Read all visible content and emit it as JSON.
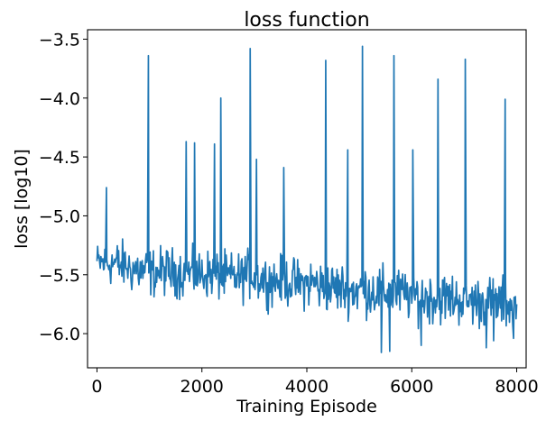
{
  "chart_data": {
    "type": "line",
    "title": "loss function",
    "xlabel": "Training Episode",
    "ylabel": "loss [log10]",
    "xlim": [
      -180,
      8180
    ],
    "ylim": [
      -6.29,
      -3.42
    ],
    "xticks": [
      0,
      2000,
      4000,
      6000,
      8000
    ],
    "xtick_labels": [
      "0",
      "2000",
      "4000",
      "6000",
      "8000"
    ],
    "yticks": [
      -6.0,
      -5.5,
      -5.0,
      -4.5,
      -4.0,
      -3.5
    ],
    "ytick_labels": [
      "−6.0",
      "−5.5",
      "−5.0",
      "−4.5",
      "−4.0",
      "−3.5"
    ],
    "grid": false,
    "legend": "none",
    "series": [
      {
        "color": "#1f77b4",
        "x_start": 0,
        "x_end": 8000,
        "points_per_segment": 16,
        "segment_width": 200,
        "band_means": [
          -5.4,
          -5.4,
          -5.42,
          -5.45,
          -5.47,
          -5.48,
          -5.47,
          -5.48,
          -5.49,
          -5.5,
          -5.49,
          -5.51,
          -5.52,
          -5.52,
          -5.5,
          -5.53,
          -5.55,
          -5.55,
          -5.56,
          -5.58,
          -5.57,
          -5.6,
          -5.61,
          -5.62,
          -5.63,
          -5.63,
          -5.64,
          -5.65,
          -5.66,
          -5.67,
          -5.68,
          -5.69,
          -5.7,
          -5.7,
          -5.71,
          -5.72,
          -5.73,
          -5.73,
          -5.74,
          -5.75
        ],
        "band_half_widths": [
          0.25,
          0.28,
          0.3,
          0.3,
          0.3,
          0.3,
          0.3,
          0.3,
          0.3,
          0.3,
          0.3,
          0.3,
          0.3,
          0.3,
          0.3,
          0.3,
          0.3,
          0.3,
          0.3,
          0.3,
          0.32,
          0.32,
          0.32,
          0.32,
          0.32,
          0.32,
          0.32,
          0.32,
          0.32,
          0.32,
          0.32,
          0.32,
          0.32,
          0.32,
          0.32,
          0.32,
          0.32,
          0.32,
          0.32,
          0.3
        ],
        "spikes": [
          {
            "x": 180,
            "y": -4.76
          },
          {
            "x": 980,
            "y": -3.64
          },
          {
            "x": 1700,
            "y": -4.37
          },
          {
            "x": 1860,
            "y": -4.38
          },
          {
            "x": 2240,
            "y": -4.39
          },
          {
            "x": 2360,
            "y": -4.0
          },
          {
            "x": 2920,
            "y": -3.58
          },
          {
            "x": 3040,
            "y": -4.52
          },
          {
            "x": 3560,
            "y": -4.59
          },
          {
            "x": 4360,
            "y": -3.68
          },
          {
            "x": 4780,
            "y": -4.44
          },
          {
            "x": 5060,
            "y": -3.56
          },
          {
            "x": 5660,
            "y": -3.64
          },
          {
            "x": 6020,
            "y": -4.44
          },
          {
            "x": 6500,
            "y": -3.84
          },
          {
            "x": 7020,
            "y": -3.67
          },
          {
            "x": 7780,
            "y": -4.01
          }
        ],
        "minima": [
          {
            "x": 5420,
            "y": -6.16
          },
          {
            "x": 5580,
            "y": -6.15
          },
          {
            "x": 6180,
            "y": -6.1
          },
          {
            "x": 7420,
            "y": -6.12
          },
          {
            "x": 7560,
            "y": -6.06
          },
          {
            "x": 7940,
            "y": -6.04
          }
        ]
      }
    ]
  }
}
